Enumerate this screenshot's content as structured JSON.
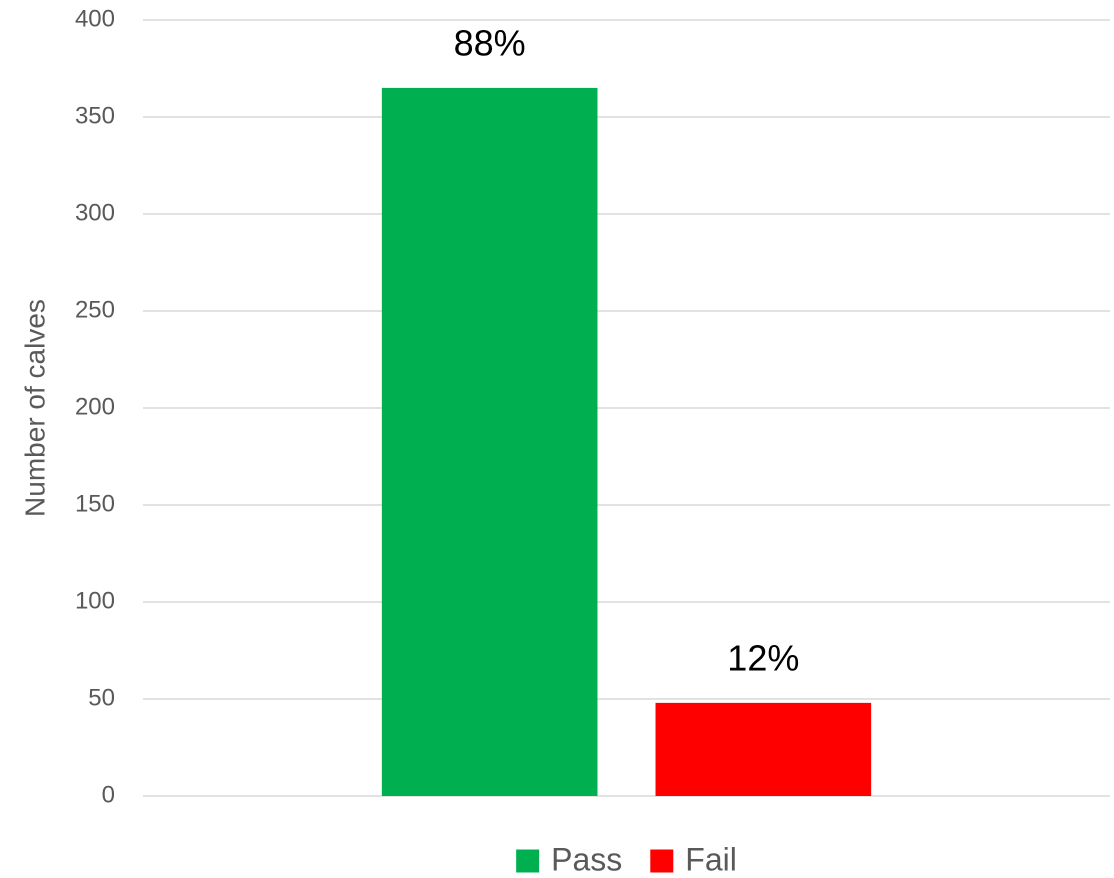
{
  "chart_data": {
    "type": "bar",
    "y_label": "Number of calves",
    "categories": [
      null
    ],
    "series": [
      {
        "name": "Pass",
        "color": "#00b050",
        "values": [
          365
        ]
      },
      {
        "name": "Fail",
        "color": "#ff0000",
        "values": [
          48
        ]
      }
    ],
    "annotations": [
      "88%",
      "12%"
    ],
    "ylim": [
      0,
      400
    ],
    "yticks": [
      0,
      50,
      100,
      150,
      200,
      250,
      300,
      350,
      400
    ],
    "grid": true,
    "legend": "bottom"
  }
}
